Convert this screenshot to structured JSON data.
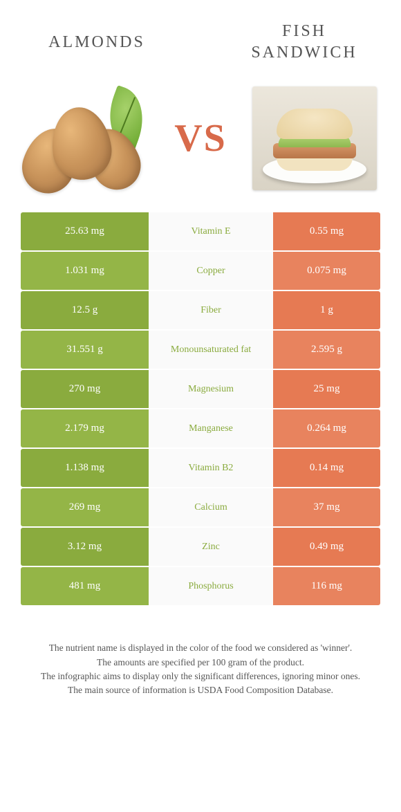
{
  "titles": {
    "left": "Almonds",
    "right": "Fish Sandwich"
  },
  "vs_text": "VS",
  "colors": {
    "left": "#8aab3e",
    "right": "#e67a53",
    "mid_bg": "#fafafa",
    "left_alt": "#94b547",
    "right_alt": "#e8835e"
  },
  "rows": [
    {
      "left": "25.63 mg",
      "mid": "Vitamin E",
      "right": "0.55 mg",
      "winner": "left"
    },
    {
      "left": "1.031 mg",
      "mid": "Copper",
      "right": "0.075 mg",
      "winner": "left"
    },
    {
      "left": "12.5 g",
      "mid": "Fiber",
      "right": "1 g",
      "winner": "left"
    },
    {
      "left": "31.551 g",
      "mid": "Monounsaturated fat",
      "right": "2.595 g",
      "winner": "left"
    },
    {
      "left": "270 mg",
      "mid": "Magnesium",
      "right": "25 mg",
      "winner": "left"
    },
    {
      "left": "2.179 mg",
      "mid": "Manganese",
      "right": "0.264 mg",
      "winner": "left"
    },
    {
      "left": "1.138 mg",
      "mid": "Vitamin B2",
      "right": "0.14 mg",
      "winner": "left"
    },
    {
      "left": "269 mg",
      "mid": "Calcium",
      "right": "37 mg",
      "winner": "left"
    },
    {
      "left": "3.12 mg",
      "mid": "Zinc",
      "right": "0.49 mg",
      "winner": "left"
    },
    {
      "left": "481 mg",
      "mid": "Phosphorus",
      "right": "116 mg",
      "winner": "left"
    }
  ],
  "footer": {
    "line1": "The nutrient name is displayed in the color of the food we considered as 'winner'.",
    "line2": "The amounts are specified per 100 gram of the product.",
    "line3": "The infographic aims to display only the significant differences, ignoring minor ones.",
    "line4": "The main source of information is USDA Food Composition Database."
  }
}
